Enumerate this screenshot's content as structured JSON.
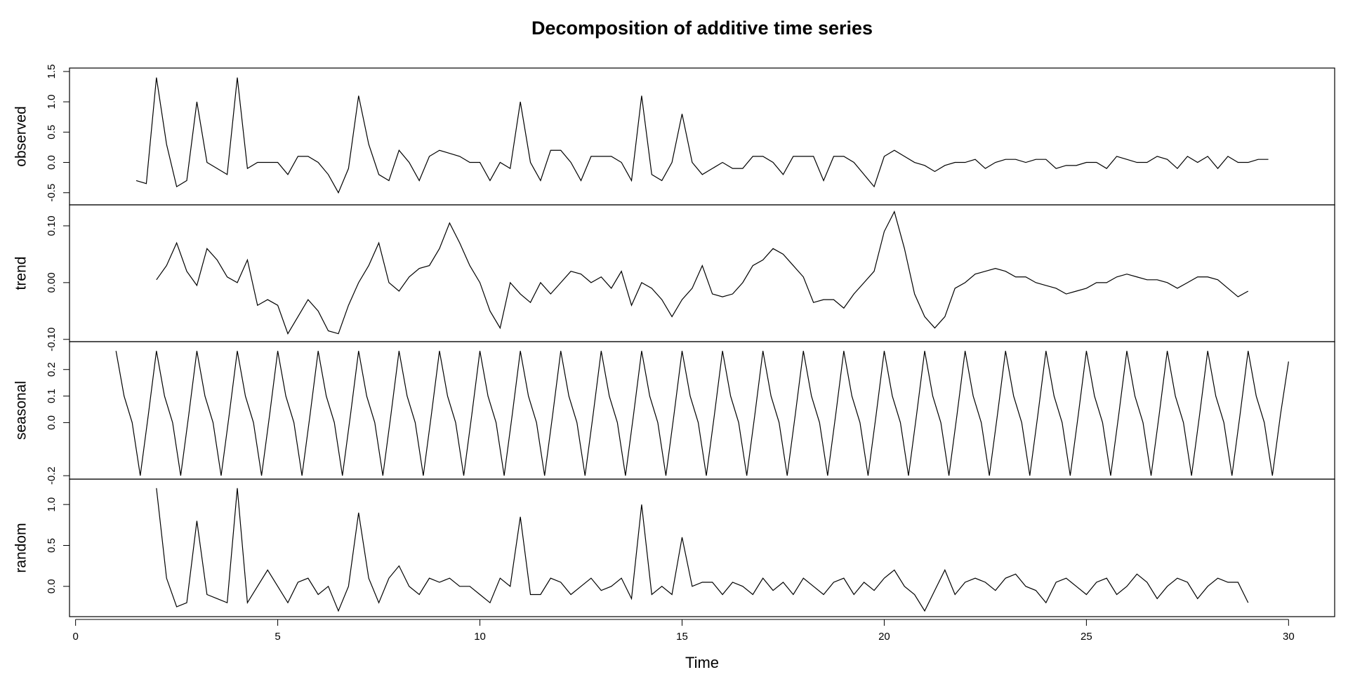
{
  "chart_data": [
    {
      "type": "line",
      "title": "Decomposition of additive time series",
      "ylabel": "observed",
      "xlim": [
        -0.15,
        31.14
      ],
      "ylim": [
        -0.7,
        1.557
      ],
      "yticks": [
        1.5,
        {
          "value": 1,
          "label": "1.0"
        },
        0.5,
        {
          "value": 0,
          "label": "0.0"
        },
        -0.5
      ],
      "x": [
        1.5,
        1.75,
        2,
        2.25,
        2.5,
        2.75,
        3,
        3.25,
        3.5,
        3.75,
        4,
        4.25,
        4.5,
        4.75,
        5,
        5.25,
        5.5,
        5.75,
        6,
        6.25,
        6.5,
        6.75,
        7,
        7.25,
        7.5,
        7.75,
        8,
        8.25,
        8.5,
        8.75,
        9,
        9.25,
        9.5,
        9.75,
        10,
        10.25,
        10.5,
        10.75,
        11,
        11.25,
        11.5,
        11.75,
        12,
        12.25,
        12.5,
        12.75,
        13,
        13.25,
        13.5,
        13.75,
        14,
        14.25,
        14.5,
        14.75,
        15,
        15.25,
        15.5,
        15.75,
        16,
        16.25,
        16.5,
        16.75,
        17,
        17.25,
        17.5,
        17.75,
        18,
        18.25,
        18.5,
        18.75,
        19,
        19.25,
        19.5,
        19.75,
        20,
        20.25,
        20.5,
        20.75,
        21,
        21.25,
        21.5,
        21.75,
        22,
        22.25,
        22.5,
        22.75,
        23,
        23.25,
        23.5,
        23.75,
        24,
        24.25,
        24.5,
        24.75,
        25,
        25.25,
        25.5,
        25.75,
        26,
        26.25,
        26.5,
        26.75,
        27,
        27.25,
        27.5,
        27.75,
        28,
        28.25,
        28.5,
        28.75,
        29,
        29.25,
        29.5
      ],
      "values": [
        -0.3,
        -0.35,
        1.4,
        0.3,
        -0.4,
        -0.3,
        1.0,
        0.0,
        -0.1,
        -0.2,
        1.4,
        -0.1,
        0.0,
        0.0,
        0.0,
        -0.2,
        0.1,
        0.1,
        0.0,
        -0.2,
        -0.5,
        -0.1,
        1.1,
        0.3,
        -0.2,
        -0.3,
        0.2,
        0.0,
        -0.3,
        0.1,
        0.2,
        0.15,
        0.1,
        0.0,
        0.0,
        -0.3,
        0.0,
        -0.1,
        1.0,
        0.0,
        -0.3,
        0.2,
        0.2,
        0.0,
        -0.3,
        0.1,
        0.1,
        0.1,
        0.0,
        -0.3,
        1.1,
        -0.2,
        -0.3,
        0.0,
        0.8,
        0.0,
        -0.2,
        -0.1,
        0.0,
        -0.1,
        -0.1,
        0.1,
        0.1,
        0.0,
        -0.2,
        0.1,
        0.1,
        0.1,
        -0.3,
        0.1,
        0.1,
        0.0,
        -0.2,
        -0.4,
        0.1,
        0.2,
        0.1,
        0.0,
        -0.05,
        -0.15,
        -0.05,
        0.0,
        0.0,
        0.05,
        -0.1,
        0.0,
        0.05,
        0.05,
        0.0,
        0.05,
        0.05,
        -0.1,
        -0.05,
        -0.05,
        0.0,
        0.0,
        -0.1,
        0.1,
        0.05,
        0.0,
        0.0,
        0.1,
        0.05,
        -0.1,
        0.1,
        0.0,
        0.1,
        -0.1,
        0.1,
        0.0,
        0.0,
        0.05,
        0.05
      ]
    },
    {
      "type": "line",
      "ylabel": "trend",
      "xlim": [
        -0.15,
        31.14
      ],
      "ylim": [
        -0.104,
        0.137
      ],
      "yticks": [
        {
          "value": 0.1,
          "label": "0.10"
        },
        {
          "value": 0,
          "label": "0.00"
        },
        {
          "value": -0.1,
          "label": "-0.10"
        }
      ],
      "x": [
        2,
        2.25,
        2.5,
        2.75,
        3,
        3.25,
        3.5,
        3.75,
        4,
        4.25,
        4.5,
        4.75,
        5,
        5.25,
        5.5,
        5.75,
        6,
        6.25,
        6.5,
        6.75,
        7,
        7.25,
        7.5,
        7.75,
        8,
        8.25,
        8.5,
        8.75,
        9,
        9.25,
        9.5,
        9.75,
        10,
        10.25,
        10.5,
        10.75,
        11,
        11.25,
        11.5,
        11.75,
        12,
        12.25,
        12.5,
        12.75,
        13,
        13.25,
        13.5,
        13.75,
        14,
        14.25,
        14.5,
        14.75,
        15,
        15.25,
        15.5,
        15.75,
        16,
        16.25,
        16.5,
        16.75,
        17,
        17.25,
        17.5,
        17.75,
        18,
        18.25,
        18.5,
        18.75,
        19,
        19.25,
        19.5,
        19.75,
        20,
        20.25,
        20.5,
        20.75,
        21,
        21.25,
        21.5,
        21.75,
        22,
        22.25,
        22.5,
        22.75,
        23,
        23.25,
        23.5,
        23.75,
        24,
        24.25,
        24.5,
        24.75,
        25,
        25.25,
        25.5,
        25.75,
        26,
        26.25,
        26.5,
        26.75,
        27,
        27.25,
        27.5,
        27.75,
        28,
        28.25,
        28.5,
        28.75,
        29
      ],
      "values": [
        0.005,
        0.03,
        0.07,
        0.02,
        -0.005,
        0.06,
        0.04,
        0.01,
        0.0,
        0.04,
        -0.04,
        -0.03,
        -0.04,
        -0.09,
        -0.06,
        -0.03,
        -0.05,
        -0.085,
        -0.09,
        -0.04,
        0.0,
        0.03,
        0.07,
        0.0,
        -0.015,
        0.01,
        0.025,
        0.03,
        0.06,
        0.105,
        0.07,
        0.03,
        0.0,
        -0.05,
        -0.08,
        0.0,
        -0.02,
        -0.035,
        0.0,
        -0.02,
        0.0,
        0.02,
        0.015,
        0.0,
        0.01,
        -0.01,
        0.02,
        -0.04,
        0.0,
        -0.01,
        -0.03,
        -0.06,
        -0.03,
        -0.01,
        0.03,
        -0.02,
        -0.025,
        -0.02,
        0.0,
        0.03,
        0.04,
        0.06,
        0.05,
        0.03,
        0.01,
        -0.035,
        -0.03,
        -0.03,
        -0.045,
        -0.02,
        0.0,
        0.02,
        0.09,
        0.125,
        0.06,
        -0.02,
        -0.06,
        -0.08,
        -0.06,
        -0.01,
        0.0,
        0.015,
        0.02,
        0.025,
        0.02,
        0.01,
        0.01,
        0.0,
        -0.005,
        -0.01,
        -0.02,
        -0.015,
        -0.01,
        0.0,
        0.0,
        0.01,
        0.015,
        0.01,
        0.005,
        0.005,
        0.0,
        -0.01,
        0.0,
        0.01,
        0.01,
        0.005,
        -0.01,
        -0.025,
        -0.015
      ]
    },
    {
      "type": "line",
      "ylabel": "seasonal",
      "xlim": [
        -0.15,
        31.14
      ],
      "ylim": [
        -0.213,
        0.305
      ],
      "yticks": [
        0.2,
        0.1,
        {
          "value": 0,
          "label": "0.0"
        },
        -0.2
      ],
      "x": [
        1,
        1.2,
        1.4,
        1.6,
        1.8,
        2,
        2.2,
        2.4,
        2.6,
        2.8,
        3,
        3.2,
        3.4,
        3.6,
        3.8,
        4,
        4.2,
        4.4,
        4.6,
        4.8,
        5,
        5.2,
        5.4,
        5.6,
        5.8,
        6,
        6.2,
        6.4,
        6.6,
        6.8,
        7,
        7.2,
        7.4,
        7.6,
        7.8,
        8,
        8.2,
        8.4,
        8.6,
        8.8,
        9,
        9.2,
        9.4,
        9.6,
        9.8,
        10,
        10.2,
        10.4,
        10.6,
        10.8,
        11,
        11.2,
        11.4,
        11.6,
        11.8,
        12,
        12.2,
        12.4,
        12.6,
        12.8,
        13,
        13.2,
        13.4,
        13.6,
        13.8,
        14,
        14.2,
        14.4,
        14.6,
        14.8,
        15,
        15.2,
        15.4,
        15.6,
        15.8,
        16,
        16.2,
        16.4,
        16.6,
        16.8,
        17,
        17.2,
        17.4,
        17.6,
        17.8,
        18,
        18.2,
        18.4,
        18.6,
        18.8,
        19,
        19.2,
        19.4,
        19.6,
        19.8,
        20,
        20.2,
        20.4,
        20.6,
        20.8,
        21,
        21.2,
        21.4,
        21.6,
        21.8,
        22,
        22.2,
        22.4,
        22.6,
        22.8,
        23,
        23.2,
        23.4,
        23.6,
        23.8,
        24,
        24.2,
        24.4,
        24.6,
        24.8,
        25,
        25.2,
        25.4,
        25.6,
        25.8,
        26,
        26.2,
        26.4,
        26.6,
        26.8,
        27,
        27.2,
        27.4,
        27.6,
        27.8,
        28,
        28.2,
        28.4,
        28.6,
        28.8,
        29,
        29.2,
        29.4,
        29.6,
        29.8,
        30
      ],
      "values": [
        0.27,
        0.1,
        0.0,
        -0.2,
        0.03,
        0.27,
        0.1,
        0.0,
        -0.2,
        0.03,
        0.27,
        0.1,
        0.0,
        -0.2,
        0.03,
        0.27,
        0.1,
        0.0,
        -0.2,
        0.03,
        0.27,
        0.1,
        0.0,
        -0.2,
        0.03,
        0.27,
        0.1,
        0.0,
        -0.2,
        0.03,
        0.27,
        0.1,
        0.0,
        -0.2,
        0.03,
        0.27,
        0.1,
        0.0,
        -0.2,
        0.03,
        0.27,
        0.1,
        0.0,
        -0.2,
        0.03,
        0.27,
        0.1,
        0.0,
        -0.2,
        0.03,
        0.27,
        0.1,
        0.0,
        -0.2,
        0.03,
        0.27,
        0.1,
        0.0,
        -0.2,
        0.03,
        0.27,
        0.1,
        0.0,
        -0.2,
        0.03,
        0.27,
        0.1,
        0.0,
        -0.2,
        0.03,
        0.27,
        0.1,
        0.0,
        -0.2,
        0.03,
        0.27,
        0.1,
        0.0,
        -0.2,
        0.03,
        0.27,
        0.1,
        0.0,
        -0.2,
        0.03,
        0.27,
        0.1,
        0.0,
        -0.2,
        0.03,
        0.27,
        0.1,
        0.0,
        -0.2,
        0.03,
        0.27,
        0.1,
        0.0,
        -0.2,
        0.03,
        0.27,
        0.1,
        0.0,
        -0.2,
        0.03,
        0.27,
        0.1,
        0.0,
        -0.2,
        0.03,
        0.27,
        0.1,
        0.0,
        -0.2,
        0.03,
        0.27,
        0.1,
        0.0,
        -0.2,
        0.03,
        0.27,
        0.1,
        0.0,
        -0.2,
        0.03,
        0.27,
        0.1,
        0.0,
        -0.2,
        0.03,
        0.27,
        0.1,
        0.0,
        -0.2,
        0.03,
        0.27,
        0.1,
        0.0,
        -0.2,
        0.03,
        0.27,
        0.1,
        0.0,
        -0.2,
        0.03,
        0.23
      ]
    },
    {
      "type": "line",
      "ylabel": "random",
      "xlabel": "Time",
      "xlim": [
        -0.15,
        31.14
      ],
      "ylim": [
        -0.37,
        1.31
      ],
      "xticks": [
        0,
        5,
        10,
        15,
        20,
        25,
        30
      ],
      "yticks": [
        {
          "value": 1,
          "label": "1.0"
        },
        0.5,
        {
          "value": 0,
          "label": "0.0"
        }
      ],
      "x": [
        2,
        2.25,
        2.5,
        2.75,
        3,
        3.25,
        3.5,
        3.75,
        4,
        4.25,
        4.5,
        4.75,
        5,
        5.25,
        5.5,
        5.75,
        6,
        6.25,
        6.5,
        6.75,
        7,
        7.25,
        7.5,
        7.75,
        8,
        8.25,
        8.5,
        8.75,
        9,
        9.25,
        9.5,
        9.75,
        10,
        10.25,
        10.5,
        10.75,
        11,
        11.25,
        11.5,
        11.75,
        12,
        12.25,
        12.5,
        12.75,
        13,
        13.25,
        13.5,
        13.75,
        14,
        14.25,
        14.5,
        14.75,
        15,
        15.25,
        15.5,
        15.75,
        16,
        16.25,
        16.5,
        16.75,
        17,
        17.25,
        17.5,
        17.75,
        18,
        18.25,
        18.5,
        18.75,
        19,
        19.25,
        19.5,
        19.75,
        20,
        20.25,
        20.5,
        20.75,
        21,
        21.25,
        21.5,
        21.75,
        22,
        22.25,
        22.5,
        22.75,
        23,
        23.25,
        23.5,
        23.75,
        24,
        24.25,
        24.5,
        24.75,
        25,
        25.25,
        25.5,
        25.75,
        26,
        26.25,
        26.5,
        26.75,
        27,
        27.25,
        27.5,
        27.75,
        28,
        28.25,
        28.5,
        28.75,
        29
      ],
      "values": [
        1.2,
        0.1,
        -0.25,
        -0.2,
        0.8,
        -0.1,
        -0.15,
        -0.2,
        1.2,
        -0.2,
        0.0,
        0.2,
        0.0,
        -0.2,
        0.05,
        0.1,
        -0.1,
        0.0,
        -0.3,
        0.0,
        0.9,
        0.1,
        -0.2,
        0.1,
        0.25,
        0.0,
        -0.1,
        0.1,
        0.05,
        0.1,
        0.0,
        0.0,
        -0.1,
        -0.2,
        0.1,
        0.0,
        0.85,
        -0.1,
        -0.1,
        0.1,
        0.05,
        -0.1,
        0.0,
        0.1,
        -0.05,
        0.0,
        0.1,
        -0.15,
        1.0,
        -0.1,
        0.0,
        -0.1,
        0.6,
        0.0,
        0.05,
        0.05,
        -0.1,
        0.05,
        0.0,
        -0.1,
        0.1,
        -0.05,
        0.05,
        -0.1,
        0.1,
        0.0,
        -0.1,
        0.05,
        0.1,
        -0.1,
        0.05,
        -0.05,
        0.1,
        0.2,
        0.0,
        -0.1,
        -0.3,
        -0.05,
        0.2,
        -0.1,
        0.05,
        0.1,
        0.05,
        -0.05,
        0.1,
        0.15,
        0.0,
        -0.05,
        -0.2,
        0.05,
        0.1,
        0.0,
        -0.1,
        0.05,
        0.1,
        -0.1,
        0.0,
        0.15,
        0.05,
        -0.15,
        0.0,
        0.1,
        0.05,
        -0.15,
        0.0,
        0.1,
        0.05,
        0.05,
        -0.2
      ]
    }
  ]
}
